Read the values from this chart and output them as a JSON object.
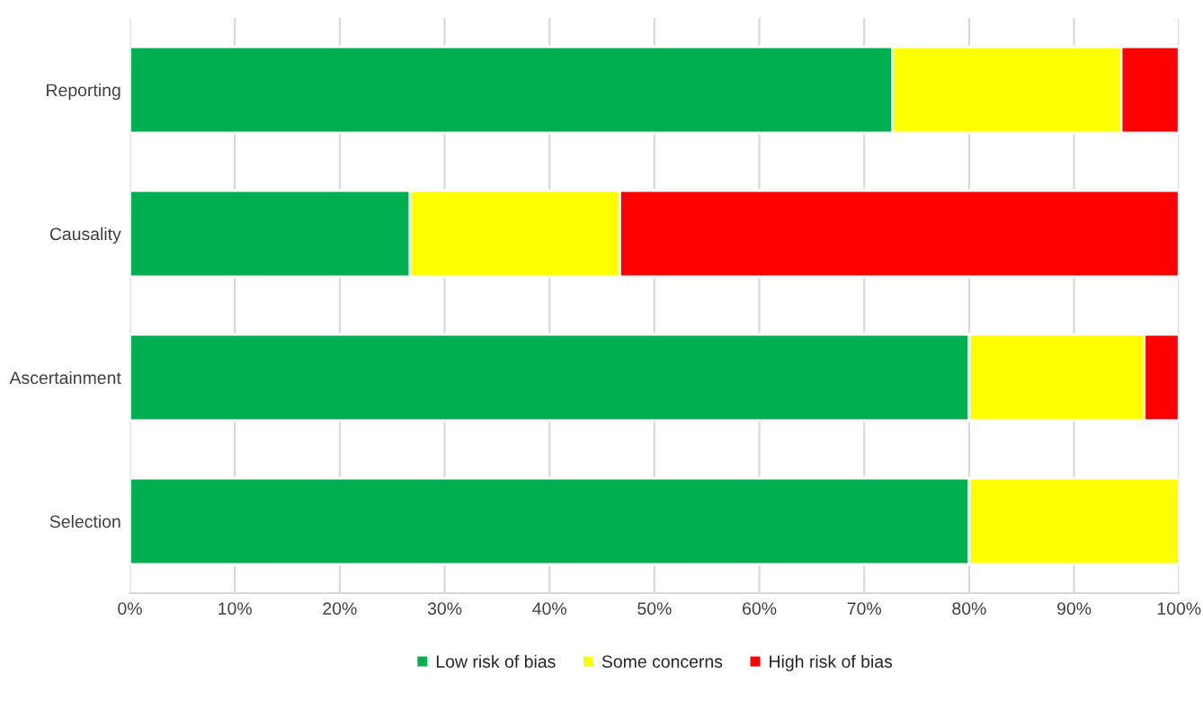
{
  "chart_data": {
    "type": "bar",
    "orientation": "horizontal",
    "stacked": true,
    "categories": [
      "Reporting",
      "Causality",
      "Ascertainment",
      "Selection"
    ],
    "series": [
      {
        "name": "Low risk of bias",
        "color": "#00b050",
        "values": [
          72.7,
          26.7,
          80,
          80
        ]
      },
      {
        "name": "Some concerns",
        "color": "#ffff00",
        "values": [
          21.8,
          20,
          16.7,
          20
        ]
      },
      {
        "name": "High risk of bias",
        "color": "#ff0000",
        "values": [
          5.5,
          53.3,
          3.3,
          null
        ]
      }
    ],
    "xlim": [
      0,
      100
    ],
    "xticks": [
      {
        "value": 0,
        "label": "0%"
      },
      {
        "value": 10,
        "label": "10%"
      },
      {
        "value": 20,
        "label": "20%"
      },
      {
        "value": 30,
        "label": "30%"
      },
      {
        "value": 40,
        "label": "40%"
      },
      {
        "value": 50,
        "label": "50%"
      },
      {
        "value": 60,
        "label": "60%"
      },
      {
        "value": 70,
        "label": "70%"
      },
      {
        "value": 80,
        "label": "80%"
      },
      {
        "value": 90,
        "label": "90%"
      },
      {
        "value": 100,
        "label": "100%"
      }
    ],
    "grid": "x",
    "legend": "bottom"
  }
}
